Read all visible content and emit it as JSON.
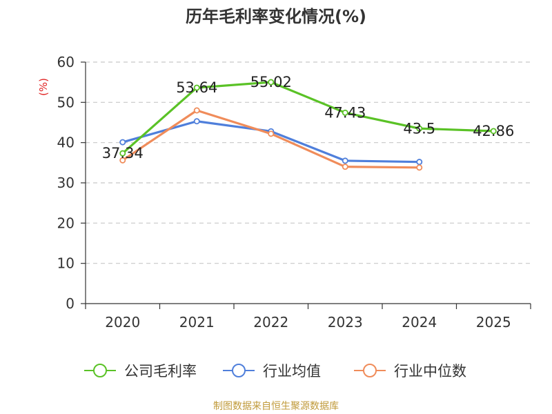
{
  "chart_data": {
    "type": "line",
    "title": "历年毛利率变化情况(%)",
    "ylabel": "(%)",
    "xlabel": "",
    "categories": [
      "2020",
      "2021",
      "2022",
      "2023",
      "2024",
      "2025"
    ],
    "ylim": [
      0,
      60
    ],
    "yticks": [
      0,
      10,
      20,
      30,
      40,
      50,
      60
    ],
    "grid": true,
    "legend_position": "bottom",
    "series": [
      {
        "name": "公司毛利率",
        "color": "#5ac226",
        "values": [
          37.34,
          53.64,
          55.02,
          47.43,
          43.5,
          42.86
        ],
        "labels": [
          "37.34",
          "53.64",
          "55.02",
          "47.43",
          "43.5",
          "42.86"
        ]
      },
      {
        "name": "行业均值",
        "color": "#4f7fdb",
        "values": [
          40.1,
          45.3,
          42.8,
          35.5,
          35.2,
          null
        ]
      },
      {
        "name": "行业中位数",
        "color": "#f08c5a",
        "values": [
          35.6,
          48.0,
          42.2,
          34.0,
          33.8,
          null
        ]
      }
    ]
  },
  "footer": {
    "source": "制图数据来自恒生聚源数据库"
  }
}
